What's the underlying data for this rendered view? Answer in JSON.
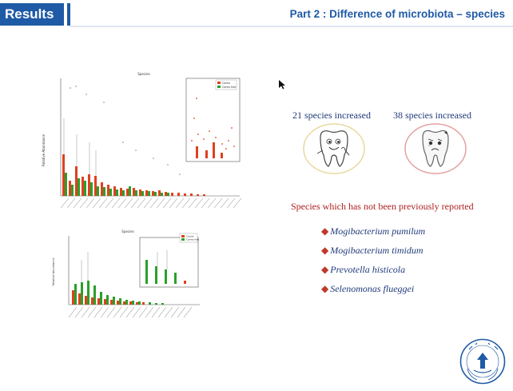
{
  "header": {
    "section_tag": "Results",
    "part_title": "Part 2 : Difference of microbiota – species"
  },
  "colors": {
    "brand_blue": "#1f5aa6",
    "caries": "#e0401f",
    "caries_free": "#2aa02a",
    "accent_red": "#b01e1e"
  },
  "upper_chart": {
    "title": "Species",
    "ylabel": "Relative Abundance",
    "legend": [
      "Caries",
      "Caries free"
    ]
  },
  "lower_chart": {
    "title": "Species",
    "ylabel": "Relative Abundance",
    "legend": [
      "Caries",
      "Caries free"
    ]
  },
  "summary": {
    "increased_caries_free": "21 species increased",
    "increased_caries": "38 species increased"
  },
  "reported_heading": "Species which has not been previously reported",
  "species": [
    "Mogibacterium pumilum",
    "Mogibacterium timidum",
    "Prevotella histicola",
    "Selenomonas flueggei"
  ]
}
